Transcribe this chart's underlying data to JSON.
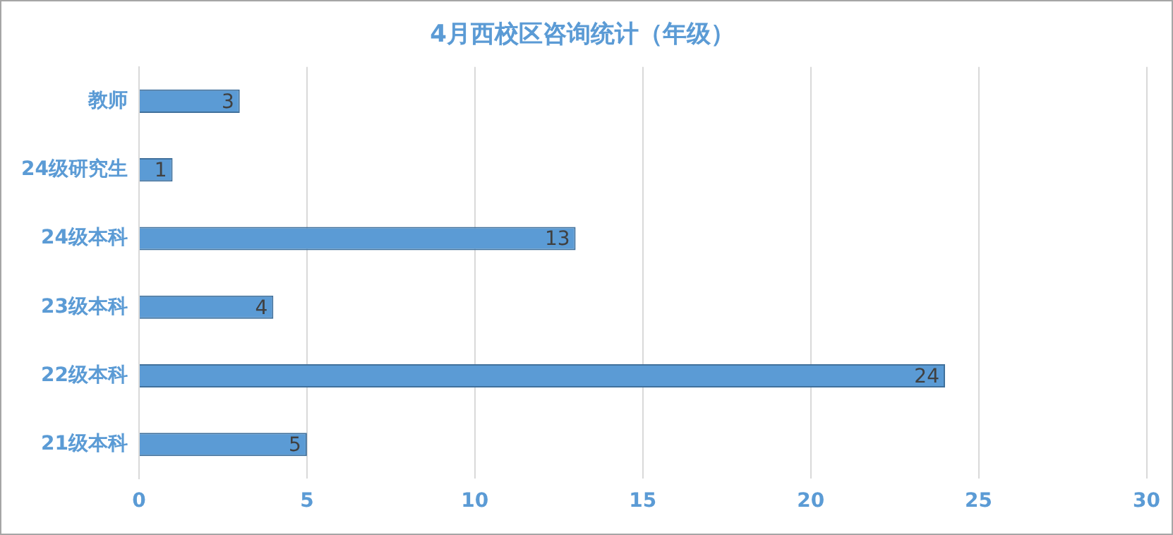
{
  "chart_data": {
    "type": "bar",
    "orientation": "horizontal",
    "title": "4月西校区咨询统计（年级）",
    "categories": [
      "教师",
      "24级研究生",
      "24级本科",
      "23级本科",
      "22级本科",
      "21级本科"
    ],
    "values": [
      3,
      1,
      13,
      4,
      24,
      5
    ],
    "color": "#5b9bd5",
    "xlim": [
      0,
      30
    ],
    "xticks": [
      0,
      5,
      10,
      15,
      20,
      25,
      30
    ],
    "grid": "x",
    "data_labels": true,
    "legend": false
  }
}
